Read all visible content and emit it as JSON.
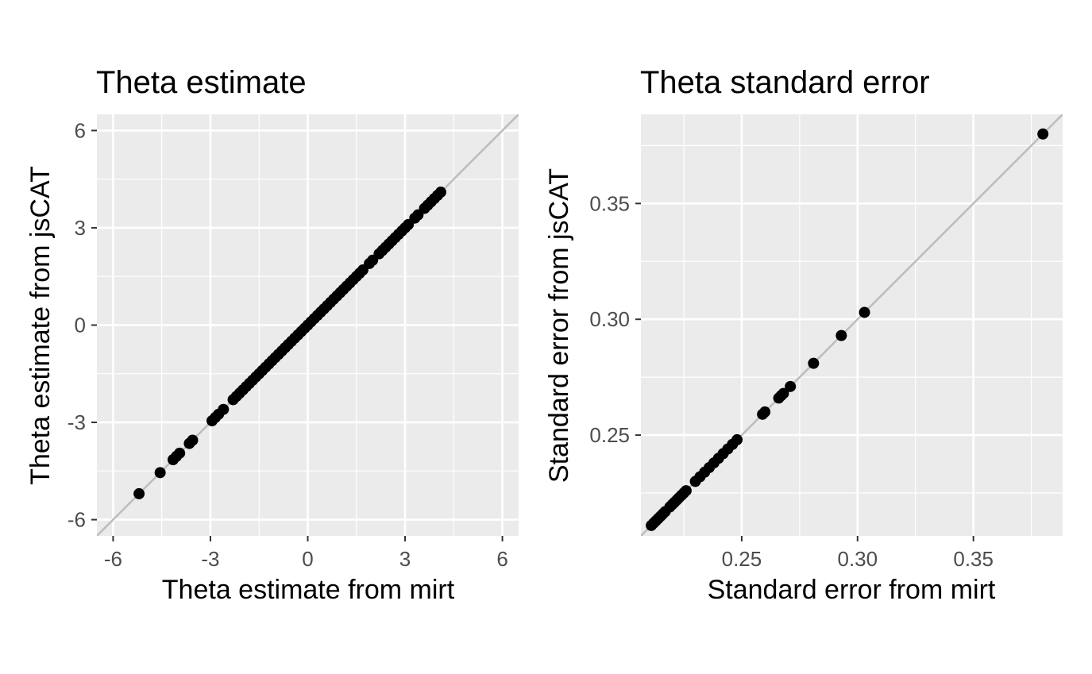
{
  "colors": {
    "panel_bg": "#ebebeb",
    "grid_major": "#ffffff",
    "tick": "#333333",
    "identity_line": "#bebebe",
    "point": "#000000"
  },
  "chart_data": [
    {
      "type": "scatter",
      "title": "Theta estimate",
      "xlabel": "Theta estimate from mirt",
      "ylabel": "Theta estimate from jsCAT",
      "xlim": [
        -6.5,
        6.5
      ],
      "ylim": [
        -6.5,
        6.5
      ],
      "x_ticks": [
        -6,
        -3,
        0,
        3,
        6
      ],
      "x_tick_labels": [
        "-6",
        "-3",
        "0",
        "3",
        "6"
      ],
      "y_ticks": [
        -6,
        -3,
        0,
        3,
        6
      ],
      "y_tick_labels": [
        "-6",
        "-3",
        "0",
        "3",
        "6"
      ],
      "grid": true,
      "reference_line": "y = x",
      "points": [
        [
          -5.2,
          -5.2
        ],
        [
          -4.55,
          -4.55
        ],
        [
          -4.15,
          -4.15
        ],
        [
          -4.05,
          -4.05
        ],
        [
          -3.95,
          -3.95
        ],
        [
          -3.65,
          -3.65
        ],
        [
          -3.55,
          -3.55
        ],
        [
          -2.95,
          -2.95
        ],
        [
          -2.85,
          -2.85
        ],
        [
          -2.75,
          -2.75
        ],
        [
          -2.6,
          -2.6
        ],
        [
          -2.3,
          -2.3
        ],
        [
          -2.2,
          -2.2
        ],
        [
          -2.1,
          -2.1
        ],
        [
          -2.0,
          -2.0
        ],
        [
          -1.9,
          -1.9
        ],
        [
          -1.8,
          -1.8
        ],
        [
          -1.7,
          -1.7
        ],
        [
          -1.6,
          -1.6
        ],
        [
          -1.5,
          -1.5
        ],
        [
          -1.4,
          -1.4
        ],
        [
          -1.3,
          -1.3
        ],
        [
          -1.2,
          -1.2
        ],
        [
          -1.1,
          -1.1
        ],
        [
          -1.0,
          -1.0
        ],
        [
          -0.9,
          -0.9
        ],
        [
          -0.8,
          -0.8
        ],
        [
          -0.7,
          -0.7
        ],
        [
          -0.6,
          -0.6
        ],
        [
          -0.5,
          -0.5
        ],
        [
          -0.4,
          -0.4
        ],
        [
          -0.3,
          -0.3
        ],
        [
          -0.2,
          -0.2
        ],
        [
          -0.1,
          -0.1
        ],
        [
          0.0,
          0.0
        ],
        [
          0.1,
          0.1
        ],
        [
          0.2,
          0.2
        ],
        [
          0.3,
          0.3
        ],
        [
          0.4,
          0.4
        ],
        [
          0.5,
          0.5
        ],
        [
          0.6,
          0.6
        ],
        [
          0.7,
          0.7
        ],
        [
          0.8,
          0.8
        ],
        [
          0.9,
          0.9
        ],
        [
          1.0,
          1.0
        ],
        [
          1.1,
          1.1
        ],
        [
          1.2,
          1.2
        ],
        [
          1.3,
          1.3
        ],
        [
          1.4,
          1.4
        ],
        [
          1.5,
          1.5
        ],
        [
          1.6,
          1.6
        ],
        [
          1.7,
          1.7
        ],
        [
          1.9,
          1.9
        ],
        [
          2.0,
          2.0
        ],
        [
          2.2,
          2.2
        ],
        [
          2.3,
          2.3
        ],
        [
          2.4,
          2.4
        ],
        [
          2.5,
          2.5
        ],
        [
          2.6,
          2.6
        ],
        [
          2.7,
          2.7
        ],
        [
          2.8,
          2.8
        ],
        [
          2.9,
          2.9
        ],
        [
          3.0,
          3.0
        ],
        [
          3.1,
          3.1
        ],
        [
          3.3,
          3.3
        ],
        [
          3.4,
          3.4
        ],
        [
          3.6,
          3.6
        ],
        [
          3.7,
          3.7
        ],
        [
          3.8,
          3.8
        ],
        [
          3.9,
          3.9
        ],
        [
          4.0,
          4.0
        ],
        [
          4.1,
          4.1
        ]
      ]
    },
    {
      "type": "scatter",
      "title": "Theta standard error",
      "xlabel": "Standard error from mirt",
      "ylabel": "Standard error from jsCAT",
      "xlim": [
        0.2065,
        0.3885
      ],
      "ylim": [
        0.2065,
        0.3885
      ],
      "x_ticks": [
        0.25,
        0.3,
        0.35
      ],
      "x_tick_labels": [
        "0.25",
        "0.30",
        "0.35"
      ],
      "y_ticks": [
        0.25,
        0.3,
        0.35
      ],
      "y_tick_labels": [
        "0.25",
        "0.30",
        "0.35"
      ],
      "grid": true,
      "reference_line": "y = x",
      "points": [
        [
          0.211,
          0.211
        ],
        [
          0.212,
          0.212
        ],
        [
          0.213,
          0.213
        ],
        [
          0.214,
          0.214
        ],
        [
          0.215,
          0.215
        ],
        [
          0.216,
          0.216
        ],
        [
          0.217,
          0.217
        ],
        [
          0.219,
          0.219
        ],
        [
          0.22,
          0.22
        ],
        [
          0.221,
          0.221
        ],
        [
          0.222,
          0.222
        ],
        [
          0.223,
          0.223
        ],
        [
          0.224,
          0.224
        ],
        [
          0.225,
          0.225
        ],
        [
          0.226,
          0.226
        ],
        [
          0.23,
          0.23
        ],
        [
          0.232,
          0.232
        ],
        [
          0.234,
          0.234
        ],
        [
          0.236,
          0.236
        ],
        [
          0.238,
          0.238
        ],
        [
          0.24,
          0.24
        ],
        [
          0.242,
          0.242
        ],
        [
          0.244,
          0.244
        ],
        [
          0.246,
          0.246
        ],
        [
          0.248,
          0.248
        ],
        [
          0.259,
          0.259
        ],
        [
          0.26,
          0.26
        ],
        [
          0.266,
          0.266
        ],
        [
          0.267,
          0.267
        ],
        [
          0.268,
          0.268
        ],
        [
          0.271,
          0.271
        ],
        [
          0.281,
          0.281
        ],
        [
          0.293,
          0.293
        ],
        [
          0.303,
          0.303
        ],
        [
          0.38,
          0.38
        ]
      ]
    }
  ]
}
